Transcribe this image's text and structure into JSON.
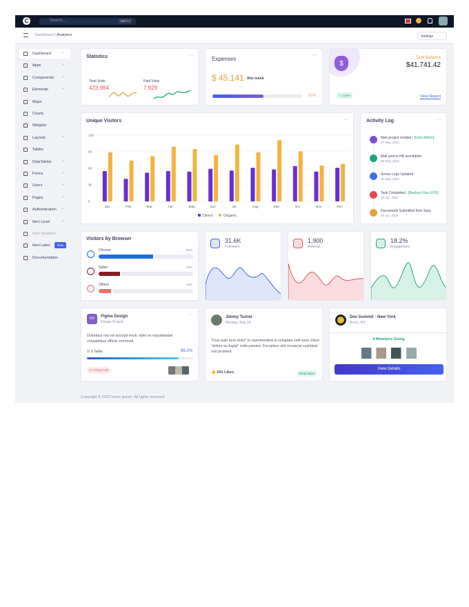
{
  "topbar": {
    "search": "Search...",
    "shortcut": "Ctrl + /"
  },
  "breadcrumb": {
    "parent": "Dashboard",
    "separator": "/",
    "current": "Analytics",
    "settings": "Settings"
  },
  "sidebar": [
    {
      "label": "Dashboard"
    },
    {
      "label": "Apps"
    },
    {
      "label": "Components"
    },
    {
      "label": "Elements"
    },
    {
      "label": "Maps"
    },
    {
      "label": "Charts"
    },
    {
      "label": "Widgets"
    },
    {
      "label": "Layouts"
    },
    {
      "label": "Tables"
    },
    {
      "label": "DataTables"
    },
    {
      "label": "Forms"
    },
    {
      "label": "Users"
    },
    {
      "label": "Pages"
    },
    {
      "label": "Authentication"
    },
    {
      "label": "Item Level"
    },
    {
      "label": "Item Disabled"
    },
    {
      "label": "Item Label",
      "badge": "New"
    },
    {
      "label": "Documentation"
    }
  ],
  "statistics": {
    "title": "Statistics",
    "total_label": "Total Visits",
    "total": "423,964",
    "paid_label": "Paid Visits",
    "paid": "7,929"
  },
  "expenses": {
    "title": "Expenses",
    "amount": "$ 45,141",
    "period": "this week",
    "percent": 57,
    "percent_label": "57%"
  },
  "balance": {
    "title": "Total Balance",
    "amount": "$41,741.42",
    "change": "+ 13.6%",
    "link": "View Report"
  },
  "chart_data": {
    "type": "bar",
    "title": "Unique Visitors",
    "categories": [
      "Jan",
      "Feb",
      "Mar",
      "Apr",
      "May",
      "Jun",
      "Jul",
      "Aug",
      "Sep",
      "Oct",
      "Nov",
      "Dec"
    ],
    "series": [
      {
        "name": "Direct",
        "color": "#6a2fd0",
        "values": [
          55,
          41,
          52,
          55,
          54,
          59,
          56,
          61,
          58,
          64,
          54,
          61
        ]
      },
      {
        "name": "Organic",
        "color": "#f2b440",
        "values": [
          89,
          74,
          82,
          99,
          95,
          84,
          103,
          89,
          111,
          91,
          65,
          68
        ]
      }
    ],
    "ylim": [
      0,
      120
    ],
    "yticks": [
      0,
      30,
      60,
      90,
      120
    ],
    "grid": true,
    "legend": "bottom"
  },
  "activity": {
    "title": "Activity Log",
    "items": [
      {
        "text": "New project created :",
        "tag": "[Cork Admin]",
        "date": "07 May, 2022",
        "color": "#7b4fd6"
      },
      {
        "text": "Mail sent to HR and Admin",
        "date": "06 May, 2022",
        "color": "#1aa57a"
      },
      {
        "text": "Server Logs Updated",
        "date": "01 May, 2022",
        "color": "#3f6ee8"
      },
      {
        "text": "Task Completed :",
        "tag": "[Backup Files EOD]",
        "date": "30 Apr, 2022",
        "color": "#e2484e"
      },
      {
        "text": "Documents Submitted from Sara",
        "date": "25 Apr, 2022",
        "color": "#e6a23c"
      }
    ]
  },
  "browsers": {
    "title": "Visitors by Browser",
    "items": [
      {
        "name": "Chrome",
        "percent": 60,
        "percent_label": "60%",
        "color": "#1e6fd9"
      },
      {
        "name": "Safari",
        "percent": 25,
        "percent_label": "25%",
        "color": "#8b1a22"
      },
      {
        "name": "Others",
        "percent": 15,
        "percent_label": "15%",
        "color": "#f06f6f"
      }
    ]
  },
  "metrics": [
    {
      "value": "31.6K",
      "label": "Followers"
    },
    {
      "value": "1,900",
      "label": "Referral"
    },
    {
      "value": "18.2%",
      "label": "Engagement"
    }
  ],
  "project": {
    "initials": "FD",
    "title": "Figma Design",
    "subtitle": "Design Project",
    "text": "Doloribus nisi vel suscipit modi, optio ex repudiandae voluptatibus officiis commodi.",
    "tasks": "5 Tasks",
    "percent": 86.2,
    "percent_label": "86.2%",
    "due": "3 Days Left"
  },
  "post": {
    "author": "Jimmy Turner",
    "date": "Monday, May 18",
    "text": "\"Duis aute irure dolor\" in reprehenderit in voluptate velit esse cillum \"dolore eu fugiat\" nulla pariatur. Excepteur sint occaecat cupidatat non proident.",
    "likes": "551 Likes",
    "link": "Read More"
  },
  "event": {
    "title": "Dev Summit - New York",
    "location": "Bronx, NY",
    "going": "4 Members Going",
    "button": "View Details"
  },
  "footer": "Copyright © 2022 lorem ipsum. All rights reserved."
}
